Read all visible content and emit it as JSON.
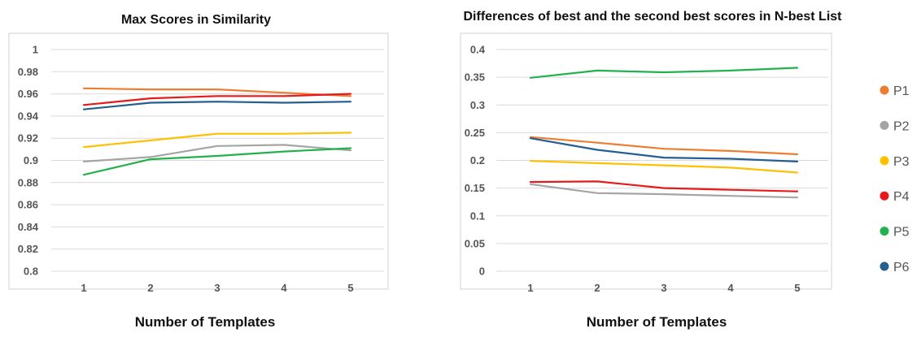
{
  "chart_data": [
    {
      "type": "line",
      "title": "Max Scores in Similarity",
      "xlabel": "Number of Templates",
      "ylabel": "",
      "categories": [
        "1",
        "2",
        "3",
        "4",
        "5"
      ],
      "ylim": [
        0.8,
        1.0
      ],
      "yticks": [
        "0.8",
        "0.82",
        "0.84",
        "0.86",
        "0.88",
        "0.9",
        "0.92",
        "0.94",
        "0.96",
        "0.98",
        "1"
      ],
      "grid": true,
      "series": [
        {
          "name": "P1",
          "values": [
            0.965,
            0.964,
            0.964,
            0.961,
            0.958
          ]
        },
        {
          "name": "P2",
          "values": [
            0.899,
            0.903,
            0.913,
            0.914,
            0.909
          ]
        },
        {
          "name": "P3",
          "values": [
            0.912,
            0.918,
            0.924,
            0.924,
            0.925
          ]
        },
        {
          "name": "P4",
          "values": [
            0.95,
            0.956,
            0.958,
            0.958,
            0.96
          ]
        },
        {
          "name": "P5",
          "values": [
            0.887,
            0.901,
            0.904,
            0.908,
            0.911
          ]
        },
        {
          "name": "P6",
          "values": [
            0.946,
            0.952,
            0.953,
            0.952,
            0.953
          ]
        }
      ]
    },
    {
      "type": "line",
      "title": "Differences of best and the second best scores in N-best List",
      "xlabel": "Number of Templates",
      "ylabel": "",
      "categories": [
        "1",
        "2",
        "3",
        "4",
        "5"
      ],
      "ylim": [
        0,
        0.4
      ],
      "yticks": [
        "0",
        "0.05",
        "0.1",
        "0.15",
        "0.2",
        "0.25",
        "0.3",
        "0.35",
        "0.4"
      ],
      "grid": true,
      "legend_position": "right",
      "series": [
        {
          "name": "P1",
          "values": [
            0.242,
            0.232,
            0.221,
            0.217,
            0.211
          ]
        },
        {
          "name": "P2",
          "values": [
            0.157,
            0.141,
            0.139,
            0.136,
            0.133
          ]
        },
        {
          "name": "P3",
          "values": [
            0.199,
            0.195,
            0.191,
            0.187,
            0.178
          ]
        },
        {
          "name": "P4",
          "values": [
            0.161,
            0.162,
            0.15,
            0.147,
            0.144
          ]
        },
        {
          "name": "P5",
          "values": [
            0.349,
            0.362,
            0.359,
            0.362,
            0.367
          ]
        },
        {
          "name": "P6",
          "values": [
            0.24,
            0.219,
            0.205,
            0.203,
            0.198
          ]
        }
      ]
    }
  ],
  "colors": {
    "P1": "#ed7d31",
    "P2": "#a5a5a5",
    "P3": "#ffc000",
    "P4": "#e61a1a",
    "P5": "#22b14c",
    "P6": "#255e91",
    "grid": "#d9d9d9",
    "frame": "#d0d0d0"
  }
}
